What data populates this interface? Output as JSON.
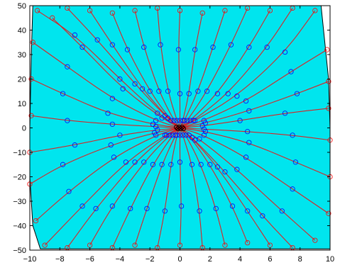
{
  "chart_data": {
    "type": "line",
    "title": "",
    "xlabel": "",
    "ylabel": "",
    "xlim": [
      -10,
      10
    ],
    "ylim": [
      -50,
      50
    ],
    "x_ticks": [
      {
        "value": -10,
        "label": "−10"
      },
      {
        "value": -8,
        "label": "−8"
      },
      {
        "value": -6,
        "label": "−6"
      },
      {
        "value": -4,
        "label": "−4"
      },
      {
        "value": -2,
        "label": "−2"
      },
      {
        "value": 0,
        "label": "0"
      },
      {
        "value": 2,
        "label": "2"
      },
      {
        "value": 4,
        "label": "4"
      },
      {
        "value": 6,
        "label": "6"
      },
      {
        "value": 8,
        "label": "8"
      },
      {
        "value": 10,
        "label": "10"
      }
    ],
    "y_ticks": [
      {
        "value": 50,
        "label": "50"
      },
      {
        "value": 40,
        "label": "40"
      },
      {
        "value": 30,
        "label": "30"
      },
      {
        "value": 20,
        "label": "20"
      },
      {
        "value": 10,
        "label": "10"
      },
      {
        "value": 0,
        "label": "0"
      },
      {
        "value": -10,
        "label": "−10"
      },
      {
        "value": -20,
        "label": "−20"
      },
      {
        "value": -30,
        "label": "−30"
      },
      {
        "value": -40,
        "label": "−40"
      },
      {
        "value": -50,
        "label": "−50"
      }
    ],
    "grid": false,
    "legend": "none",
    "background_region": {
      "color": "#00e5ee",
      "outline": "#000000",
      "boundary": [
        [
          -9.8,
          50
        ],
        [
          9.4,
          50
        ],
        [
          9.9,
          20
        ],
        [
          10.0,
          0
        ],
        [
          10.0,
          -49.5
        ],
        [
          -9.3,
          -49.5
        ],
        [
          -9.8,
          -40
        ],
        [
          -10.0,
          -20
        ],
        [
          -10.0,
          0
        ],
        [
          -9.9,
          30
        ]
      ]
    },
    "trajectory_color": "#ff0000",
    "trajectory_marker_color": "#0000ff",
    "trajectory_marker": "open-circle",
    "end_marker_color": "#ff0000",
    "center_marker_color": "#000000",
    "trajectories": [
      {
        "x": [
          -9.5,
          -7.0,
          -4.0,
          -1.5,
          0.0
        ],
        "y": [
          48.0,
          38.0,
          20.0,
          6.0,
          0.0
        ]
      },
      {
        "x": [
          -8.5,
          -6.5,
          -3.8,
          -1.2,
          0.0
        ],
        "y": [
          45.0,
          33.0,
          16.0,
          4.0,
          0.0
        ]
      },
      {
        "x": [
          -7.5,
          -5.5,
          -3.0,
          -1.0,
          0.0
        ],
        "y": [
          49.0,
          36.0,
          18.0,
          5.0,
          0.0
        ]
      },
      {
        "x": [
          -6.0,
          -4.5,
          -2.5,
          -0.8,
          0.0
        ],
        "y": [
          48.0,
          34.0,
          16.0,
          4.0,
          0.0
        ]
      },
      {
        "x": [
          -4.5,
          -3.5,
          -2.0,
          -0.6,
          0.0
        ],
        "y": [
          47.0,
          32.0,
          15.0,
          3.0,
          0.0
        ]
      },
      {
        "x": [
          -3.0,
          -2.4,
          -1.4,
          -0.4,
          0.0
        ],
        "y": [
          48.0,
          33.0,
          15.0,
          3.0,
          0.0
        ]
      },
      {
        "x": [
          -1.5,
          -1.3,
          -0.8,
          -0.2,
          0.0
        ],
        "y": [
          49.0,
          34.0,
          15.0,
          3.0,
          0.0
        ]
      },
      {
        "x": [
          0.0,
          -0.1,
          0.0,
          0.0,
          0.0
        ],
        "y": [
          48.0,
          32.0,
          14.0,
          3.0,
          0.0
        ]
      },
      {
        "x": [
          1.5,
          1.0,
          0.6,
          0.2,
          0.0
        ],
        "y": [
          47.0,
          32.0,
          14.0,
          3.0,
          0.0
        ]
      },
      {
        "x": [
          3.0,
          2.2,
          1.2,
          0.3,
          0.0
        ],
        "y": [
          48.0,
          33.0,
          15.0,
          3.0,
          0.0
        ]
      },
      {
        "x": [
          4.5,
          3.4,
          1.8,
          0.5,
          0.0
        ],
        "y": [
          49.0,
          34.0,
          15.0,
          3.0,
          0.0
        ]
      },
      {
        "x": [
          6.0,
          4.6,
          2.5,
          0.7,
          0.0
        ],
        "y": [
          48.0,
          33.0,
          14.0,
          3.0,
          0.0
        ]
      },
      {
        "x": [
          7.5,
          5.8,
          3.2,
          0.9,
          0.0
        ],
        "y": [
          49.0,
          33.0,
          14.0,
          3.0,
          0.0
        ]
      },
      {
        "x": [
          9.0,
          7.0,
          3.8,
          1.0,
          0.0
        ],
        "y": [
          48.0,
          31.0,
          13.0,
          3.0,
          0.0
        ]
      },
      {
        "x": [
          -9.8,
          -7.5,
          -4.5,
          -1.6,
          0.0
        ],
        "y": [
          35.0,
          25.0,
          12.0,
          3.0,
          0.0
        ]
      },
      {
        "x": [
          -9.9,
          -7.8,
          -4.8,
          -1.8,
          0.0
        ],
        "y": [
          20.0,
          14.0,
          6.0,
          1.5,
          0.0
        ]
      },
      {
        "x": [
          -9.9,
          -7.5,
          -4.5,
          -1.6,
          0.0
        ],
        "y": [
          5.0,
          3.0,
          1.5,
          0.5,
          0.0
        ]
      },
      {
        "x": [
          -10.0,
          -7.0,
          -4.0,
          -1.5,
          0.0
        ],
        "y": [
          -10.0,
          -7.0,
          -3.0,
          -0.8,
          0.0
        ]
      },
      {
        "x": [
          -10.0,
          -7.8,
          -4.6,
          -1.7,
          0.0
        ],
        "y": [
          -23.0,
          -15.0,
          -7.0,
          -2.0,
          0.0
        ]
      },
      {
        "x": [
          -9.6,
          -7.4,
          -4.4,
          -1.6,
          0.0
        ],
        "y": [
          -38.0,
          -26.0,
          -12.0,
          -3.0,
          0.0
        ]
      },
      {
        "x": [
          -9.0,
          -6.5,
          -3.6,
          -1.0,
          0.0
        ],
        "y": [
          -48.0,
          -32.0,
          -14.0,
          -3.0,
          0.0
        ]
      },
      {
        "x": [
          -7.5,
          -5.6,
          -3.0,
          -0.9,
          0.0
        ],
        "y": [
          -49.0,
          -33.0,
          -14.0,
          -3.0,
          0.0
        ]
      },
      {
        "x": [
          -6.0,
          -4.5,
          -2.4,
          -0.7,
          0.0
        ],
        "y": [
          -48.0,
          -32.0,
          -14.0,
          -3.0,
          0.0
        ]
      },
      {
        "x": [
          -4.5,
          -3.3,
          -1.8,
          -0.5,
          0.0
        ],
        "y": [
          -49.0,
          -33.0,
          -15.0,
          -3.0,
          0.0
        ]
      },
      {
        "x": [
          -3.0,
          -2.2,
          -1.2,
          -0.3,
          0.0
        ],
        "y": [
          -48.0,
          -33.0,
          -15.0,
          -3.0,
          0.0
        ]
      },
      {
        "x": [
          -1.5,
          -1.0,
          -0.6,
          -0.2,
          0.0
        ],
        "y": [
          -49.0,
          -34.0,
          -15.0,
          -3.0,
          0.0
        ]
      },
      {
        "x": [
          0.0,
          0.1,
          0.0,
          0.0,
          0.0
        ],
        "y": [
          -48.0,
          -32.0,
          -14.0,
          -3.0,
          0.0
        ]
      },
      {
        "x": [
          1.5,
          1.3,
          0.8,
          0.2,
          0.0
        ],
        "y": [
          -49.0,
          -34.0,
          -15.0,
          -3.0,
          0.0
        ]
      },
      {
        "x": [
          3.0,
          2.4,
          1.4,
          0.4,
          0.0
        ],
        "y": [
          -48.0,
          -33.0,
          -15.0,
          -3.0,
          0.0
        ]
      },
      {
        "x": [
          4.5,
          3.5,
          2.0,
          0.6,
          0.0
        ],
        "y": [
          -47.0,
          -32.0,
          -15.0,
          -3.0,
          0.0
        ]
      },
      {
        "x": [
          6.0,
          4.5,
          2.5,
          0.8,
          0.0
        ],
        "y": [
          -48.0,
          -34.0,
          -16.0,
          -4.0,
          0.0
        ]
      },
      {
        "x": [
          7.5,
          5.5,
          3.0,
          1.0,
          0.0
        ],
        "y": [
          -49.0,
          -36.0,
          -18.0,
          -5.0,
          0.0
        ]
      },
      {
        "x": [
          9.0,
          6.8,
          3.8,
          1.3,
          0.0
        ],
        "y": [
          -46.0,
          -34.0,
          -17.0,
          -4.5,
          0.0
        ]
      },
      {
        "x": [
          9.9,
          7.5,
          4.4,
          1.6,
          0.0
        ],
        "y": [
          -35.0,
          -25.0,
          -12.0,
          -3.0,
          0.0
        ]
      },
      {
        "x": [
          10.0,
          7.7,
          4.6,
          1.7,
          0.0
        ],
        "y": [
          -20.0,
          -14.0,
          -6.0,
          -1.5,
          0.0
        ]
      },
      {
        "x": [
          10.0,
          7.5,
          4.5,
          1.6,
          0.0
        ],
        "y": [
          -5.0,
          -3.0,
          -1.5,
          -0.5,
          0.0
        ]
      },
      {
        "x": [
          9.9,
          7.0,
          4.0,
          1.5,
          0.0
        ],
        "y": [
          8.0,
          6.0,
          3.0,
          0.8,
          0.0
        ]
      },
      {
        "x": [
          9.9,
          7.8,
          4.6,
          1.7,
          0.0
        ],
        "y": [
          19.0,
          14.0,
          7.0,
          2.0,
          0.0
        ]
      },
      {
        "x": [
          9.8,
          7.4,
          4.4,
          1.6,
          0.0
        ],
        "y": [
          32.0,
          23.0,
          11.0,
          3.0,
          0.0
        ]
      }
    ]
  }
}
